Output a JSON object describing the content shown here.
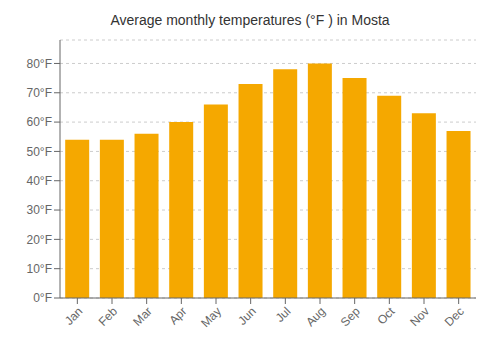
{
  "chart_data": {
    "type": "bar",
    "title": "Average monthly temperatures (°F ) in Mosta",
    "categories": [
      "Jan",
      "Feb",
      "Mar",
      "Apr",
      "May",
      "Jun",
      "Jul",
      "Aug",
      "Sep",
      "Oct",
      "Nov",
      "Dec"
    ],
    "values": [
      54,
      54,
      56,
      60,
      66,
      73,
      78,
      80,
      75,
      69,
      63,
      57
    ],
    "color": "#F5A800",
    "ylim": [
      0,
      88
    ],
    "yticks": [
      {
        "value": 0,
        "label": "0°F"
      },
      {
        "value": 10,
        "label": "10°F"
      },
      {
        "value": 20,
        "label": "20°F"
      },
      {
        "value": 30,
        "label": "30°F"
      },
      {
        "value": 40,
        "label": "40°F"
      },
      {
        "value": 50,
        "label": "50°F"
      },
      {
        "value": 60,
        "label": "60°F"
      },
      {
        "value": 70,
        "label": "70°F"
      },
      {
        "value": 80,
        "label": "80°F"
      }
    ],
    "grid": true
  }
}
